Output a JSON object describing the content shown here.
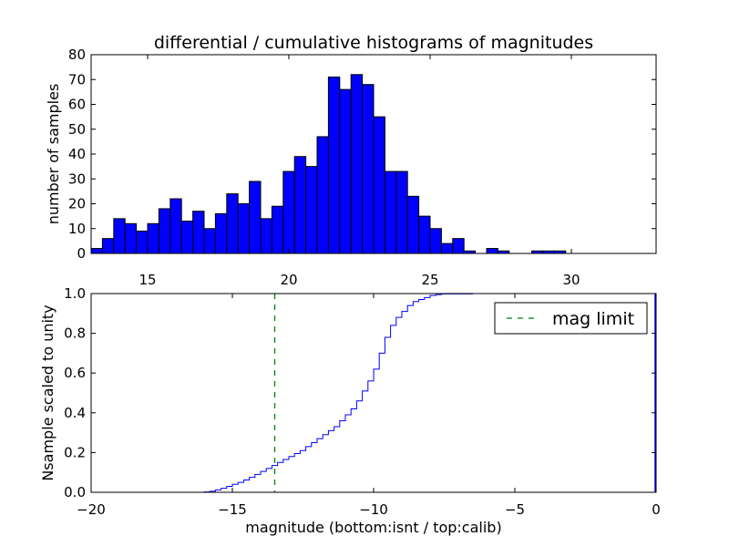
{
  "figure": {
    "title": "differential / cumulative histograms of magnitudes",
    "xlabel": "magnitude (bottom:isnt / top:calib)"
  },
  "colors": {
    "bar_fill": "#0000ff",
    "bar_edge": "#000000",
    "cdf_line": "#0000ff",
    "mag_limit": "#008000",
    "axes": "#000000",
    "background": "#ffffff"
  },
  "chart_data": [
    {
      "id": "top",
      "type": "bar",
      "title": "differential / cumulative histograms of magnitudes",
      "xlabel": "",
      "ylabel": "number of samples",
      "xlim": [
        13.0,
        33.0
      ],
      "ylim": [
        0,
        80
      ],
      "xticks": [
        15,
        20,
        25,
        30
      ],
      "xtick_labels": [
        "15",
        "20",
        "25",
        "30"
      ],
      "yticks": [
        0,
        10,
        20,
        30,
        40,
        50,
        60,
        70,
        80
      ],
      "ytick_labels": [
        "0",
        "10",
        "20",
        "30",
        "40",
        "50",
        "60",
        "70",
        "80"
      ],
      "bin_start": 13.0,
      "bin_width": 0.4,
      "values": [
        2,
        6,
        14,
        12,
        9,
        12,
        18,
        22,
        13,
        17,
        10,
        16,
        24,
        20,
        29,
        14,
        19,
        33,
        39,
        35,
        47,
        71,
        66,
        72,
        68,
        55,
        33,
        33,
        23,
        15,
        10,
        4,
        6,
        1,
        0,
        2,
        1,
        0,
        0,
        1,
        1,
        1,
        0,
        0,
        0,
        0,
        0,
        0,
        0,
        0
      ]
    },
    {
      "id": "bottom",
      "type": "line",
      "step": true,
      "title": "",
      "xlabel": "magnitude (bottom:isnt / top:calib)",
      "ylabel": "Nsample scaled to unity",
      "xlim": [
        -20,
        0
      ],
      "ylim": [
        0.0,
        1.0
      ],
      "xticks": [
        -20,
        -15,
        -10,
        -5,
        0
      ],
      "xtick_labels": [
        "−20",
        "−15",
        "−10",
        "−5",
        "0"
      ],
      "yticks": [
        0.0,
        0.2,
        0.4,
        0.6,
        0.8,
        1.0
      ],
      "ytick_labels": [
        "0.0",
        "0.2",
        "0.4",
        "0.6",
        "0.8",
        "1.0"
      ],
      "x": [
        -20.0,
        -16.0,
        -15.8,
        -15.6,
        -15.4,
        -15.2,
        -15.0,
        -14.8,
        -14.6,
        -14.4,
        -14.2,
        -14.0,
        -13.8,
        -13.6,
        -13.4,
        -13.2,
        -13.0,
        -12.8,
        -12.6,
        -12.4,
        -12.2,
        -12.0,
        -11.8,
        -11.6,
        -11.4,
        -11.2,
        -11.0,
        -10.8,
        -10.6,
        -10.4,
        -10.2,
        -10.0,
        -9.8,
        -9.6,
        -9.4,
        -9.2,
        -9.0,
        -8.8,
        -8.6,
        -8.4,
        -8.2,
        -8.0,
        -7.8,
        -7.6,
        -6.5,
        -6.0,
        0.0
      ],
      "y": [
        0.0,
        0.002,
        0.005,
        0.012,
        0.02,
        0.03,
        0.04,
        0.05,
        0.062,
        0.075,
        0.09,
        0.105,
        0.12,
        0.135,
        0.15,
        0.165,
        0.18,
        0.195,
        0.21,
        0.23,
        0.25,
        0.27,
        0.29,
        0.31,
        0.33,
        0.36,
        0.39,
        0.42,
        0.46,
        0.51,
        0.56,
        0.62,
        0.7,
        0.78,
        0.84,
        0.88,
        0.91,
        0.94,
        0.96,
        0.97,
        0.98,
        0.99,
        0.995,
        0.998,
        1.0,
        1.0,
        1.0
      ],
      "mag_limit": -13.5,
      "legend": {
        "location": "upper right",
        "entries": [
          {
            "label": "mag limit",
            "style": "dashed"
          }
        ]
      }
    }
  ]
}
